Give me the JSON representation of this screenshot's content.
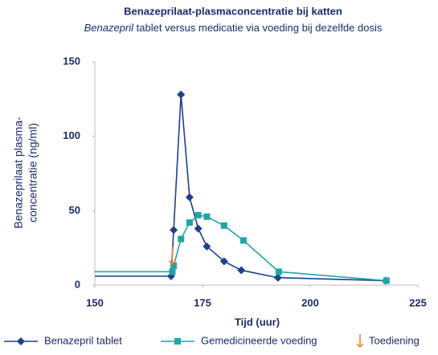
{
  "chart_data": {
    "type": "line",
    "title": "Benazeprilaat-plasmaconcentratie bij katten",
    "subtitle": [
      "Benazepril",
      " tablet versus medicatie via voeding bij dezelfde dosis"
    ],
    "xlabel": "Tijd (uur)",
    "ylabel": [
      "Benazeprilaat plasma-",
      "concentratie (ng/ml)"
    ],
    "xlim": [
      150,
      225
    ],
    "xticks": [
      150,
      175,
      200,
      225
    ],
    "ylim": [
      0,
      150
    ],
    "yticks": [
      0,
      50,
      100,
      150
    ],
    "series": [
      {
        "name": "Benazepril tablet",
        "color": "#1d3f8f",
        "marker": "diamond",
        "x": [
          150,
          167.7,
          168.3,
          170,
          172,
          174,
          176,
          180,
          184,
          192.5,
          217.5
        ],
        "values": [
          6,
          6,
          37,
          128,
          59,
          38,
          26,
          16,
          10,
          5,
          3
        ]
      },
      {
        "name": "Gemedicineerde voeding",
        "color": "#1fa6a6",
        "marker": "square",
        "x": [
          150,
          168,
          168.3,
          170,
          172,
          174,
          176,
          180,
          184.5,
          192.7,
          217.7
        ],
        "values": [
          9,
          9,
          13,
          31,
          42,
          47,
          46,
          40,
          30,
          9,
          3
        ]
      }
    ],
    "annotation": {
      "label": "Toediening",
      "x": 168,
      "color": "#f07f22"
    }
  }
}
